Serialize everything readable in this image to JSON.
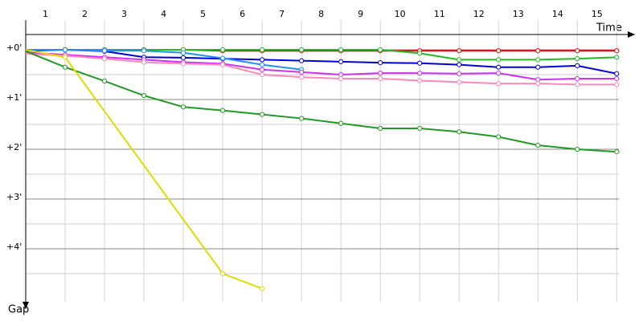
{
  "chart_data": {
    "type": "line",
    "x_label": "Time",
    "y_label": "Gap",
    "categories": [
      "1",
      "2",
      "3",
      "4",
      "5",
      "6",
      "7",
      "8",
      "9",
      "10",
      "11",
      "12",
      "13",
      "14",
      "15"
    ],
    "xlim": [
      0,
      15.3
    ],
    "xticks": [
      1,
      2,
      3,
      4,
      5,
      6,
      7,
      8,
      9,
      10,
      11,
      12,
      13,
      14,
      15
    ],
    "ylim": [
      0,
      5.0
    ],
    "yticks": [
      {
        "value": 0,
        "label": "+0'"
      },
      {
        "value": 1,
        "label": "+1'"
      },
      {
        "value": 2,
        "label": "+2'"
      },
      {
        "value": 3,
        "label": "+3'"
      },
      {
        "value": 4,
        "label": "+4'"
      }
    ],
    "minor_yticks": [
      0.5,
      1.5,
      2.5,
      3.5,
      4.5
    ],
    "grid": true,
    "series": [
      {
        "color": "#e60000",
        "x": [
          0,
          1,
          2,
          3,
          4,
          5,
          6,
          7,
          8,
          9,
          10,
          11,
          12,
          13,
          14,
          15
        ],
        "values": [
          0,
          0,
          0,
          0,
          0,
          0.02,
          0.02,
          0.02,
          0.02,
          0.02,
          0.02,
          0.02,
          0.02,
          0.02,
          0.02,
          0.02
        ]
      },
      {
        "color": "#22bb22",
        "x": [
          0,
          1,
          2,
          3,
          4,
          5,
          6,
          7,
          8,
          9,
          10,
          11,
          12,
          13,
          14,
          15
        ],
        "values": [
          0,
          0,
          0,
          0,
          0,
          0,
          0,
          0,
          0,
          0,
          0.07,
          0.2,
          0.2,
          0.2,
          0.18,
          0.15
        ]
      },
      {
        "color": "#0000dd",
        "x": [
          0,
          1,
          2,
          3,
          4,
          5,
          6,
          7,
          8,
          9,
          10,
          11,
          12,
          13,
          14,
          15
        ],
        "values": [
          0.02,
          0,
          0.03,
          0.15,
          0.16,
          0.18,
          0.2,
          0.22,
          0.24,
          0.26,
          0.27,
          0.3,
          0.35,
          0.35,
          0.32,
          0.48
        ]
      },
      {
        "color": "#1e90ff",
        "x": [
          0,
          1,
          2,
          3,
          4,
          5,
          6,
          7
        ],
        "values": [
          0,
          0,
          0.02,
          0.02,
          0.06,
          0.17,
          0.3,
          0.4
        ]
      },
      {
        "color": "#cc33ee",
        "x": [
          0,
          1,
          2,
          3,
          4,
          5,
          6,
          7,
          8,
          9,
          10,
          11,
          12,
          13,
          14,
          15
        ],
        "values": [
          0.05,
          0.1,
          0.15,
          0.2,
          0.25,
          0.28,
          0.4,
          0.45,
          0.5,
          0.47,
          0.47,
          0.48,
          0.47,
          0.6,
          0.58,
          0.58
        ]
      },
      {
        "color": "#ff88bb",
        "x": [
          0,
          1,
          2,
          3,
          4,
          5,
          6,
          7,
          8,
          9,
          10,
          11,
          12,
          13,
          14,
          15
        ],
        "values": [
          0.08,
          0.12,
          0.18,
          0.25,
          0.28,
          0.3,
          0.5,
          0.55,
          0.58,
          0.58,
          0.62,
          0.65,
          0.68,
          0.68,
          0.7,
          0.7
        ]
      },
      {
        "color": "#229922",
        "x": [
          0,
          1,
          2,
          3,
          4,
          5,
          6,
          7,
          8,
          9,
          10,
          11,
          12,
          13,
          14,
          15
        ],
        "values": [
          0.03,
          0.35,
          0.63,
          0.92,
          1.15,
          1.22,
          1.3,
          1.38,
          1.48,
          1.58,
          1.58,
          1.65,
          1.75,
          1.92,
          2.0,
          2.05
        ]
      },
      {
        "color": "#dddd00",
        "x": [
          0,
          1,
          5,
          6
        ],
        "values": [
          0,
          0.15,
          4.5,
          4.8
        ]
      }
    ]
  }
}
